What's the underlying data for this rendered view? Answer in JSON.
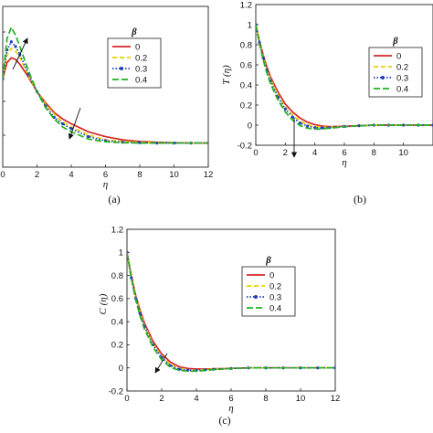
{
  "chart_data": [
    {
      "id": "a",
      "type": "line",
      "caption": "(a)",
      "xlabel": "η",
      "ylabel": "",
      "xlim": [
        0,
        12
      ],
      "ylim": [
        0,
        1
      ],
      "xticks": [
        "0",
        "2",
        "4",
        "6",
        "8",
        "10",
        "12"
      ],
      "yticks": [],
      "legend": {
        "title": "β",
        "placement": "top-right"
      },
      "x": [
        0,
        0.25,
        0.5,
        0.75,
        1,
        1.5,
        2,
        2.5,
        3,
        3.5,
        4,
        5,
        6,
        7,
        8,
        9,
        10,
        11,
        12
      ],
      "series": [
        {
          "name": "0",
          "color": "#d62728",
          "dash": "solid",
          "values": [
            0.55,
            0.65,
            0.68,
            0.67,
            0.64,
            0.56,
            0.47,
            0.4,
            0.34,
            0.3,
            0.27,
            0.22,
            0.19,
            0.17,
            0.16,
            0.155,
            0.152,
            0.15,
            0.15
          ]
        },
        {
          "name": "0.2",
          "color": "#e8d300",
          "dash": "dash",
          "values": [
            0.55,
            0.7,
            0.74,
            0.72,
            0.68,
            0.57,
            0.47,
            0.39,
            0.33,
            0.28,
            0.25,
            0.2,
            0.17,
            0.16,
            0.155,
            0.152,
            0.15,
            0.15,
            0.15
          ]
        },
        {
          "name": "0.3",
          "color": "#1f3fbf",
          "dash": "dot",
          "marker": true,
          "values": [
            0.55,
            0.73,
            0.78,
            0.75,
            0.7,
            0.58,
            0.47,
            0.38,
            0.31,
            0.27,
            0.24,
            0.19,
            0.165,
            0.155,
            0.152,
            0.15,
            0.15,
            0.15,
            0.15
          ]
        },
        {
          "name": "0.4",
          "color": "#22b022",
          "dash": "longdash",
          "values": [
            0.55,
            0.8,
            0.87,
            0.82,
            0.75,
            0.6,
            0.47,
            0.37,
            0.3,
            0.25,
            0.22,
            0.175,
            0.158,
            0.152,
            0.15,
            0.15,
            0.15,
            0.15,
            0.15
          ]
        }
      ]
    },
    {
      "id": "b",
      "type": "line",
      "caption": "(b)",
      "xlabel": "η",
      "ylabel": "T (η)",
      "xlim": [
        0,
        12
      ],
      "ylim": [
        -0.2,
        1.2
      ],
      "xticks": [
        "0",
        "2",
        "4",
        "6",
        "8",
        "10"
      ],
      "yticks": [
        "-0.2",
        "0",
        "0.2",
        "0.4",
        "0.6",
        "0.8",
        "1",
        "1.2"
      ],
      "legend": {
        "title": "β",
        "placement": "top-right"
      },
      "x": [
        0,
        0.25,
        0.5,
        0.75,
        1,
        1.5,
        2,
        2.5,
        3,
        3.5,
        4,
        4.5,
        5,
        6,
        7,
        8,
        9,
        10,
        11,
        12
      ],
      "series": [
        {
          "name": "0",
          "color": "#d62728",
          "dash": "solid",
          "values": [
            1,
            0.84,
            0.7,
            0.58,
            0.48,
            0.33,
            0.21,
            0.13,
            0.07,
            0.03,
            0.005,
            -0.01,
            -0.015,
            -0.01,
            -0.005,
            0,
            0,
            0,
            0,
            0
          ]
        },
        {
          "name": "0.2",
          "color": "#e8d300",
          "dash": "dash",
          "values": [
            1,
            0.83,
            0.68,
            0.56,
            0.46,
            0.3,
            0.18,
            0.1,
            0.04,
            0.005,
            -0.015,
            -0.022,
            -0.02,
            -0.012,
            -0.005,
            0,
            0,
            0,
            0,
            0
          ]
        },
        {
          "name": "0.3",
          "color": "#1f3fbf",
          "dash": "dot",
          "marker": true,
          "values": [
            1,
            0.82,
            0.67,
            0.55,
            0.44,
            0.28,
            0.16,
            0.08,
            0.02,
            -0.01,
            -0.025,
            -0.028,
            -0.025,
            -0.014,
            -0.006,
            0,
            0,
            0,
            0,
            0
          ]
        },
        {
          "name": "0.4",
          "color": "#22b022",
          "dash": "longdash",
          "values": [
            1,
            0.81,
            0.65,
            0.52,
            0.41,
            0.25,
            0.13,
            0.05,
            -0.005,
            -0.03,
            -0.04,
            -0.038,
            -0.03,
            -0.016,
            -0.006,
            0,
            0,
            0,
            0,
            0
          ]
        }
      ]
    },
    {
      "id": "c",
      "type": "line",
      "caption": "(c)",
      "xlabel": "η",
      "ylabel": "C (η)",
      "xlim": [
        0,
        12
      ],
      "ylim": [
        -0.2,
        1.2
      ],
      "xticks": [
        "0",
        "2",
        "4",
        "6",
        "8",
        "10",
        "12"
      ],
      "yticks": [
        "-0.2",
        "0",
        "0.2",
        "0.4",
        "0.6",
        "0.8",
        "1",
        "1.2"
      ],
      "legend": {
        "title": "β",
        "placement": "top-right"
      },
      "x": [
        0,
        0.25,
        0.5,
        0.75,
        1,
        1.5,
        2,
        2.5,
        3,
        3.5,
        4,
        4.5,
        5,
        6,
        7,
        8,
        9,
        10,
        11,
        12
      ],
      "series": [
        {
          "name": "0",
          "color": "#d62728",
          "dash": "solid",
          "values": [
            1,
            0.8,
            0.63,
            0.5,
            0.39,
            0.23,
            0.12,
            0.05,
            0.01,
            -0.005,
            -0.01,
            -0.01,
            -0.008,
            -0.004,
            0,
            0,
            0,
            0,
            0,
            0
          ]
        },
        {
          "name": "0.2",
          "color": "#e8d300",
          "dash": "dash",
          "values": [
            1,
            0.79,
            0.62,
            0.48,
            0.37,
            0.21,
            0.1,
            0.03,
            -0.005,
            -0.015,
            -0.018,
            -0.015,
            -0.01,
            -0.004,
            0,
            0,
            0,
            0,
            0,
            0
          ]
        },
        {
          "name": "0.3",
          "color": "#1f3fbf",
          "dash": "dot",
          "marker": true,
          "values": [
            1,
            0.78,
            0.6,
            0.47,
            0.36,
            0.2,
            0.09,
            0.02,
            -0.012,
            -0.02,
            -0.022,
            -0.018,
            -0.012,
            -0.005,
            0,
            0,
            0,
            0,
            0,
            0
          ]
        },
        {
          "name": "0.4",
          "color": "#22b022",
          "dash": "longdash",
          "values": [
            1,
            0.77,
            0.59,
            0.45,
            0.34,
            0.18,
            0.07,
            0.005,
            -0.02,
            -0.028,
            -0.028,
            -0.022,
            -0.015,
            -0.006,
            0,
            0,
            0,
            0,
            0,
            0
          ]
        }
      ]
    }
  ]
}
